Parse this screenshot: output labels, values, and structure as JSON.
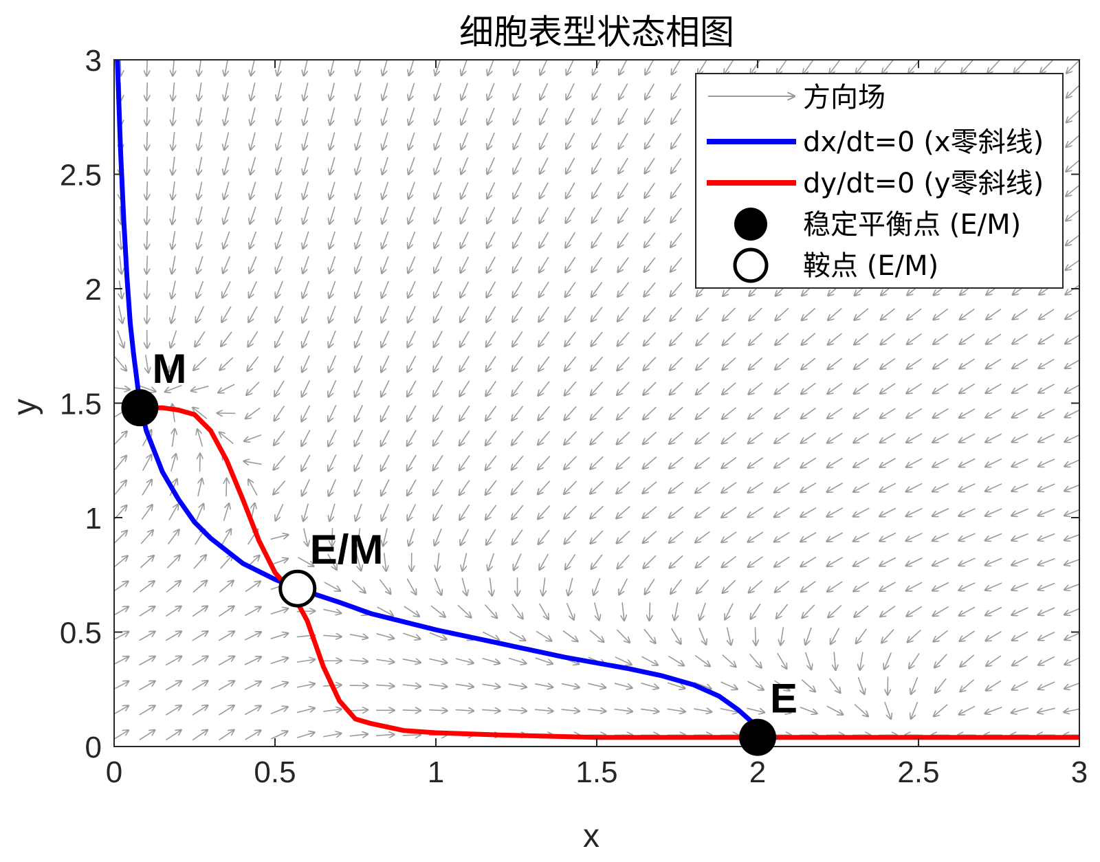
{
  "chart_data": {
    "type": "line",
    "title": "细胞表型状态相图",
    "xlabel": "x",
    "ylabel": "y",
    "xlim": [
      0,
      3
    ],
    "ylim": [
      0,
      3
    ],
    "xticks": [
      "0",
      "0.5",
      "1",
      "1.5",
      "2",
      "2.5",
      "3"
    ],
    "yticks": [
      "0",
      "0.5",
      "1",
      "1.5",
      "2",
      "2.5",
      "3"
    ],
    "grid": false,
    "legend_position": "top-right",
    "colors": {
      "x_nullcline": "#0000ff",
      "y_nullcline": "#ff0000",
      "vector_field": "#9a9a9a",
      "stable_point": "#000000",
      "saddle_point": "#ffffff"
    },
    "legend": [
      {
        "key": "field",
        "label": "方向场"
      },
      {
        "key": "x_null",
        "label": "dx/dt=0 (x零斜线)"
      },
      {
        "key": "y_null",
        "label": "dy/dt=0 (y零斜线)"
      },
      {
        "key": "stable",
        "label": "稳定平衡点 (E/M)"
      },
      {
        "key": "saddle",
        "label": "鞍点 (E/M)"
      }
    ],
    "series": [
      {
        "name": "dx/dt=0 (x零斜线)",
        "points": [
          [
            0.01,
            3.0
          ],
          [
            0.02,
            2.6
          ],
          [
            0.03,
            2.3
          ],
          [
            0.04,
            2.05
          ],
          [
            0.05,
            1.85
          ],
          [
            0.06,
            1.72
          ],
          [
            0.08,
            1.5
          ],
          [
            0.1,
            1.38
          ],
          [
            0.15,
            1.2
          ],
          [
            0.2,
            1.08
          ],
          [
            0.25,
            0.98
          ],
          [
            0.3,
            0.91
          ],
          [
            0.4,
            0.8
          ],
          [
            0.5,
            0.73
          ],
          [
            0.57,
            0.69
          ],
          [
            0.7,
            0.63
          ],
          [
            0.8,
            0.58
          ],
          [
            1.0,
            0.51
          ],
          [
            1.2,
            0.45
          ],
          [
            1.4,
            0.39
          ],
          [
            1.6,
            0.34
          ],
          [
            1.7,
            0.31
          ],
          [
            1.8,
            0.27
          ],
          [
            1.88,
            0.22
          ],
          [
            1.94,
            0.16
          ],
          [
            1.98,
            0.11
          ],
          [
            2.0,
            0.07
          ]
        ]
      },
      {
        "name": "dy/dt=0 (y零斜线)",
        "points": [
          [
            0.08,
            1.48
          ],
          [
            0.15,
            1.48
          ],
          [
            0.2,
            1.47
          ],
          [
            0.25,
            1.45
          ],
          [
            0.3,
            1.38
          ],
          [
            0.35,
            1.25
          ],
          [
            0.4,
            1.08
          ],
          [
            0.45,
            0.9
          ],
          [
            0.5,
            0.76
          ],
          [
            0.55,
            0.68
          ],
          [
            0.6,
            0.55
          ],
          [
            0.65,
            0.35
          ],
          [
            0.7,
            0.2
          ],
          [
            0.75,
            0.12
          ],
          [
            0.8,
            0.1
          ],
          [
            0.9,
            0.07
          ],
          [
            1.0,
            0.06
          ],
          [
            1.2,
            0.05
          ],
          [
            1.5,
            0.04
          ],
          [
            2.0,
            0.04
          ],
          [
            3.0,
            0.04
          ]
        ]
      }
    ],
    "equilibria": [
      {
        "label": "M",
        "x": 0.08,
        "y": 1.48,
        "type": "stable"
      },
      {
        "label": "E/M",
        "x": 0.57,
        "y": 0.69,
        "type": "saddle"
      },
      {
        "label": "E",
        "x": 2.0,
        "y": 0.04,
        "type": "stable"
      }
    ]
  }
}
